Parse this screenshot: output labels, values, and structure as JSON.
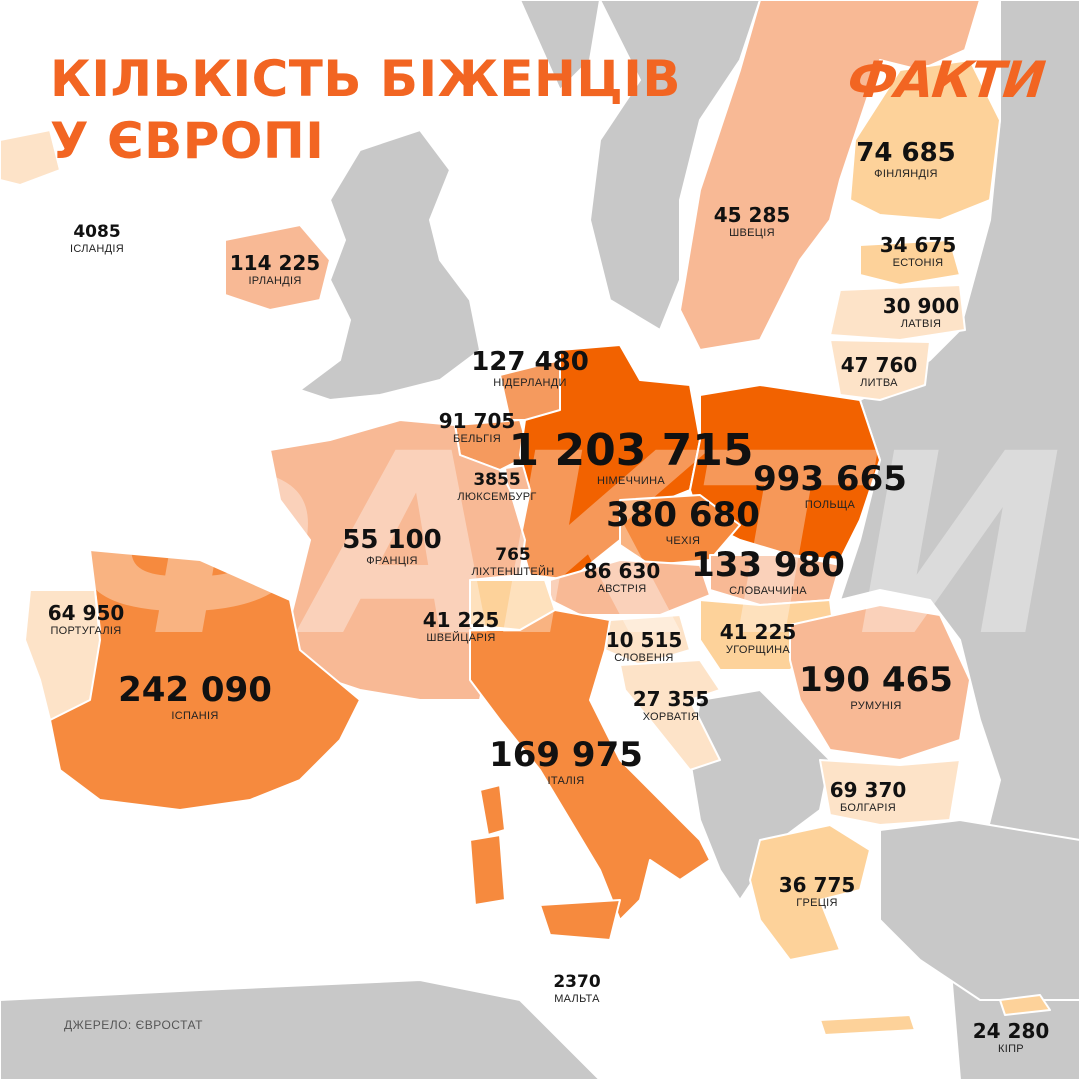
{
  "title": {
    "line1": "КІЛЬКІСТЬ БІЖЕНЦІВ",
    "line2": "У ЄВРОПІ"
  },
  "brand": {
    "logo_text": "ФАКТИ",
    "watermark_text": "ФАКТИ",
    "color": "#f26522"
  },
  "colors": {
    "sea": "#ffffff",
    "land_other": "#c8c8c8",
    "scale_lightest": "#fde3c8",
    "scale_light": "#fdd29a",
    "scale_mid_light": "#f8b995",
    "scale_mid": "#f59a5e",
    "scale_strong": "#f68a3e",
    "scale_darkest": "#f26200"
  },
  "countries": [
    {
      "key": "iceland",
      "name": "ІСЛАНДІЯ",
      "value": "4085"
    },
    {
      "key": "ireland",
      "name": "ІРЛАНДІЯ",
      "value": "114 225"
    },
    {
      "key": "netherlands",
      "name": "НІДЕРЛАНДИ",
      "value": "127 480"
    },
    {
      "key": "belgium",
      "name": "БЕЛЬГІЯ",
      "value": "91 705"
    },
    {
      "key": "luxembourg",
      "name": "ЛЮКСЕМБУРГ",
      "value": "3855"
    },
    {
      "key": "germany",
      "name": "НІМЕЧЧИНА",
      "value": "1 203 715"
    },
    {
      "key": "poland",
      "name": "ПОЛЬЩА",
      "value": "993 665"
    },
    {
      "key": "czechia",
      "name": "ЧЕХІЯ",
      "value": "380 680"
    },
    {
      "key": "slovakia",
      "name": "СЛОВАЧЧИНА",
      "value": "133 980"
    },
    {
      "key": "austria",
      "name": "АВСТРІЯ",
      "value": "86 630"
    },
    {
      "key": "liechtenstein",
      "name": "ЛІХТЕНШТЕЙН",
      "value": "765"
    },
    {
      "key": "france",
      "name": "ФРАНЦІЯ",
      "value": "55 100"
    },
    {
      "key": "switzerland",
      "name": "ШВЕЙЦАРІЯ",
      "value": "41 225"
    },
    {
      "key": "slovenia",
      "name": "СЛОВЕНІЯ",
      "value": "10 515"
    },
    {
      "key": "hungary",
      "name": "УГОРЩИНА",
      "value": "41 225"
    },
    {
      "key": "croatia",
      "name": "ХОРВАТІЯ",
      "value": "27 355"
    },
    {
      "key": "romania",
      "name": "РУМУНІЯ",
      "value": "190 465"
    },
    {
      "key": "bulgaria",
      "name": "БОЛГАРІЯ",
      "value": "69 370"
    },
    {
      "key": "greece",
      "name": "ГРЕЦІЯ",
      "value": "36 775"
    },
    {
      "key": "italy",
      "name": "ІТАЛІЯ",
      "value": "169 975"
    },
    {
      "key": "malta",
      "name": "МАЛЬТА",
      "value": "2370"
    },
    {
      "key": "cyprus",
      "name": "КІПР",
      "value": "24 280"
    },
    {
      "key": "portugal",
      "name": "ПОРТУГАЛІЯ",
      "value": "64 950"
    },
    {
      "key": "spain",
      "name": "ІСПАНІЯ",
      "value": "242 090"
    },
    {
      "key": "sweden",
      "name": "ШВЕЦІЯ",
      "value": "45 285"
    },
    {
      "key": "finland",
      "name": "ФІНЛЯНДІЯ",
      "value": "74 685"
    },
    {
      "key": "estonia",
      "name": "ЕСТОНІЯ",
      "value": "34 675"
    },
    {
      "key": "latvia",
      "name": "ЛАТВІЯ",
      "value": "30 900"
    },
    {
      "key": "lithuania",
      "name": "ЛИТВА",
      "value": "47 760"
    }
  ],
  "source": "ДЖЕРЕЛО: ЄВРОСТАТ"
}
